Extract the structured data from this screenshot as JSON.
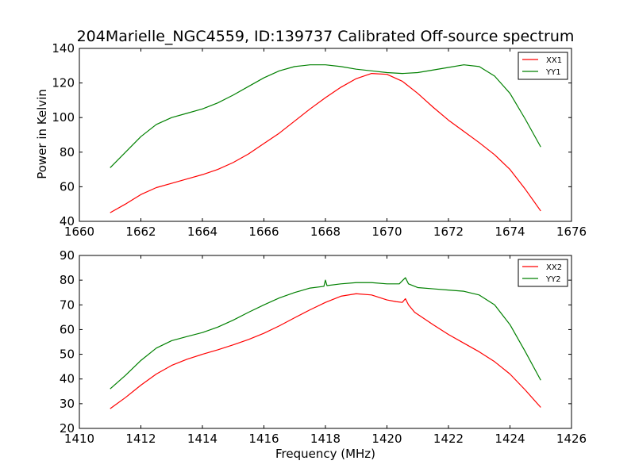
{
  "chart_data": [
    {
      "type": "line",
      "title": "204Marielle_NGC4559, ID:139737 Calibrated Off-source spectrum",
      "xlabel": "",
      "ylabel": "Power in Kelvin",
      "xlim": [
        1660,
        1676
      ],
      "ylim": [
        40,
        140
      ],
      "xticks": [
        1660,
        1662,
        1664,
        1666,
        1668,
        1670,
        1672,
        1674,
        1676
      ],
      "yticks": [
        40,
        60,
        80,
        100,
        120,
        140
      ],
      "legend_position": "top-right",
      "grid": false,
      "series": [
        {
          "name": "XX1",
          "color": "#ff0000",
          "x": [
            1661.0,
            1661.5,
            1662.0,
            1662.5,
            1663.0,
            1663.5,
            1664.0,
            1664.5,
            1665.0,
            1665.5,
            1666.0,
            1666.5,
            1667.0,
            1667.5,
            1668.0,
            1668.5,
            1669.0,
            1669.5,
            1670.0,
            1670.5,
            1671.0,
            1671.5,
            1672.0,
            1672.5,
            1673.0,
            1673.5,
            1674.0,
            1674.5,
            1675.0
          ],
          "y": [
            45,
            50,
            55.5,
            59.5,
            62,
            64.5,
            67,
            70,
            74,
            79,
            85,
            91,
            98,
            105,
            111.5,
            117.5,
            122.5,
            125.5,
            125,
            121,
            114,
            106,
            98.5,
            92,
            85.5,
            78.5,
            70,
            58.5,
            46
          ]
        },
        {
          "name": "YY1",
          "color": "#008000",
          "x": [
            1661.0,
            1661.5,
            1662.0,
            1662.5,
            1663.0,
            1663.5,
            1664.0,
            1664.5,
            1665.0,
            1665.5,
            1666.0,
            1666.5,
            1667.0,
            1667.5,
            1668.0,
            1668.5,
            1669.0,
            1669.5,
            1670.0,
            1670.5,
            1671.0,
            1671.5,
            1672.0,
            1672.5,
            1673.0,
            1673.5,
            1674.0,
            1674.5,
            1675.0
          ],
          "y": [
            71,
            80,
            89,
            96,
            100,
            102.5,
            105,
            108.5,
            113,
            118,
            123,
            127,
            129.5,
            130.5,
            130.5,
            129.5,
            128,
            127,
            126,
            125.5,
            126,
            127.5,
            129,
            130.5,
            129.5,
            124,
            114,
            99,
            83
          ]
        }
      ]
    },
    {
      "type": "line",
      "title": "",
      "xlabel": "Frequency (MHz)",
      "ylabel": "",
      "xlim": [
        1410,
        1426
      ],
      "ylim": [
        20,
        90
      ],
      "xticks": [
        1410,
        1412,
        1414,
        1416,
        1418,
        1420,
        1422,
        1424,
        1426
      ],
      "yticks": [
        20,
        30,
        40,
        50,
        60,
        70,
        80,
        90
      ],
      "legend_position": "top-right",
      "grid": false,
      "series": [
        {
          "name": "XX2",
          "color": "#ff0000",
          "x": [
            1411.0,
            1411.5,
            1412.0,
            1412.5,
            1413.0,
            1413.5,
            1414.0,
            1414.5,
            1415.0,
            1415.5,
            1416.0,
            1416.5,
            1417.0,
            1417.5,
            1418.0,
            1418.5,
            1419.0,
            1419.5,
            1420.0,
            1420.3,
            1420.5,
            1420.6,
            1420.7,
            1420.9,
            1421.5,
            1422.0,
            1422.5,
            1423.0,
            1423.5,
            1424.0,
            1424.5,
            1425.0
          ],
          "y": [
            28,
            32.5,
            37.5,
            42,
            45.5,
            48,
            50,
            51.8,
            53.8,
            56,
            58.5,
            61.5,
            64.8,
            68,
            71,
            73.5,
            74.5,
            74,
            72,
            71.3,
            71,
            72.5,
            70,
            67,
            62,
            58,
            54.5,
            51,
            47,
            42,
            35.5,
            28.5
          ]
        },
        {
          "name": "YY2",
          "color": "#008000",
          "x": [
            1411.0,
            1411.5,
            1412.0,
            1412.5,
            1413.0,
            1413.5,
            1414.0,
            1414.5,
            1415.0,
            1415.5,
            1416.0,
            1416.5,
            1417.0,
            1417.5,
            1417.95,
            1418.0,
            1418.05,
            1418.5,
            1419.0,
            1419.5,
            1420.0,
            1420.4,
            1420.6,
            1420.7,
            1421.0,
            1421.5,
            1422.0,
            1422.5,
            1423.0,
            1423.5,
            1424.0,
            1424.5,
            1425.0
          ],
          "y": [
            36,
            41.5,
            47.5,
            52.5,
            55.5,
            57.2,
            58.8,
            61,
            63.8,
            67,
            70,
            72.8,
            75,
            76.8,
            77.5,
            80,
            77.8,
            78.5,
            79,
            79,
            78.5,
            78.5,
            81,
            78.5,
            77,
            76.5,
            76,
            75.5,
            74,
            70,
            62,
            51,
            39.5
          ]
        }
      ]
    }
  ]
}
